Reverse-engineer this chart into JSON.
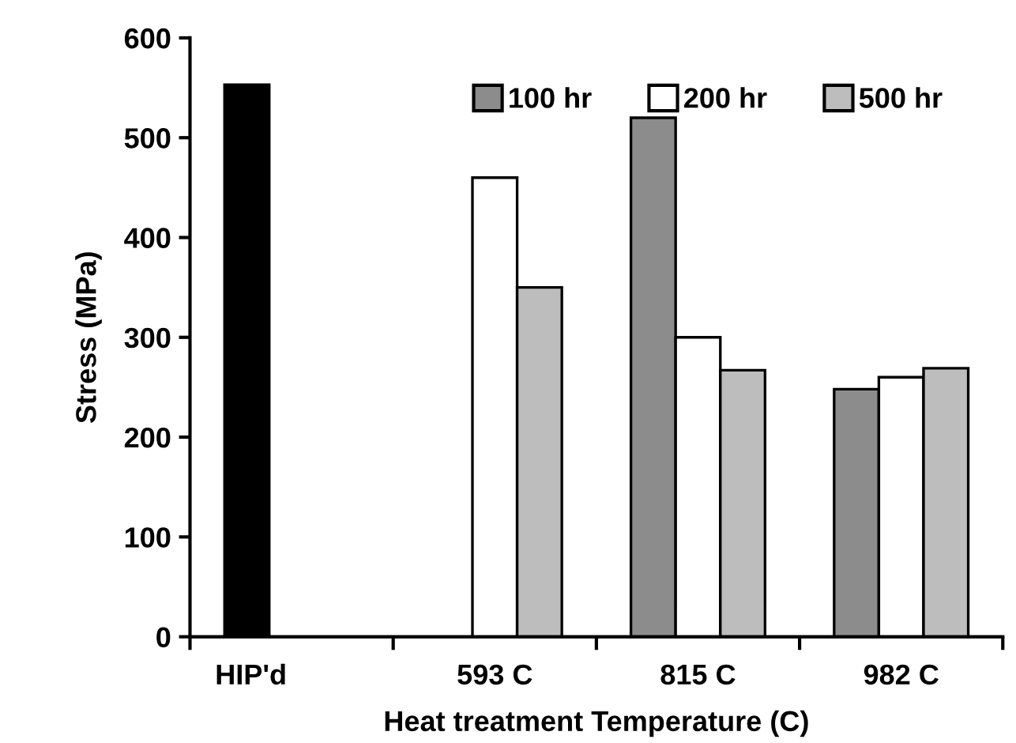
{
  "chart_data": {
    "type": "bar",
    "xlabel": "Heat treatment Temperature (C)",
    "ylabel": "Stress (MPa)",
    "categories": [
      "HIP'd",
      "593 C",
      "815 C",
      "982 C"
    ],
    "series": [
      {
        "color": "#000000",
        "values": [
          553,
          null,
          null,
          null
        ]
      },
      {
        "name": "100 hr",
        "color": "#8c8c8c",
        "values": [
          null,
          null,
          520,
          248
        ]
      },
      {
        "name": "200 hr",
        "color": "#ffffff",
        "values": [
          null,
          460,
          300,
          260
        ]
      },
      {
        "name": "500 hr",
        "color": "#bdbdbd",
        "values": [
          null,
          350,
          267,
          269
        ]
      }
    ],
    "ylim": [
      0,
      600
    ],
    "yticks": [
      0,
      100,
      200,
      300,
      400,
      500,
      600
    ],
    "grid": false,
    "legend": "top right"
  }
}
